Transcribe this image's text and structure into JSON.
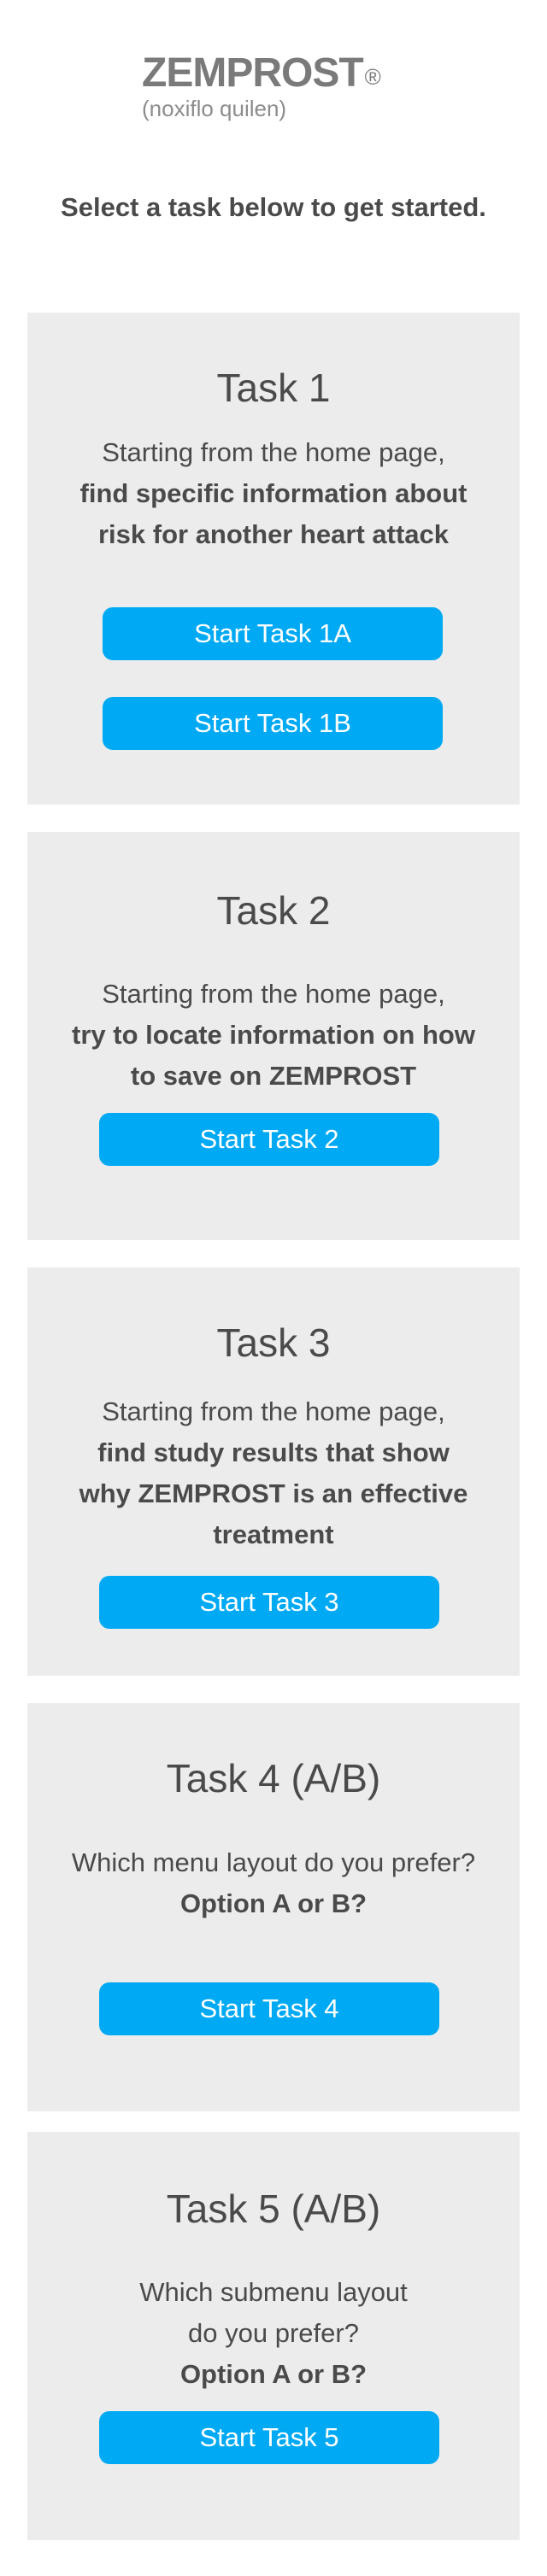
{
  "brand": {
    "name": "ZEMPROST",
    "registered_mark": "®",
    "generic_name": "(noxiflo quilen)"
  },
  "intro_text": "Select a task below to get started.",
  "colors": {
    "button": "#00a9f4",
    "card_bg": "#ececec",
    "text": "#4a4a4a"
  },
  "tasks": [
    {
      "title": "Task 1",
      "lines": [
        "Starting from the home page,"
      ],
      "bold_lines": [
        "find specific information about",
        "risk for another heart attack"
      ],
      "buttons": [
        "Start Task 1A",
        "Start Task 1B"
      ]
    },
    {
      "title": "Task 2",
      "lines": [
        "Starting from the home page,"
      ],
      "bold_lines": [
        "try to locate information on how",
        "to save on ZEMPROST"
      ],
      "buttons": [
        "Start Task 2"
      ]
    },
    {
      "title": "Task 3",
      "lines": [
        "Starting from the home page,"
      ],
      "bold_lines": [
        "find study results that show",
        "why ZEMPROST is an effective",
        "treatment"
      ],
      "buttons": [
        "Start Task 3"
      ]
    },
    {
      "title": "Task 4 (A/B)",
      "lines": [
        "Which menu layout do you prefer?"
      ],
      "bold_lines": [
        "Option A or B?"
      ],
      "buttons": [
        "Start Task 4"
      ]
    },
    {
      "title": "Task 5 (A/B)",
      "lines": [
        "Which submenu layout",
        "do you prefer?"
      ],
      "bold_lines": [
        "Option A or B?"
      ],
      "buttons": [
        "Start Task 5"
      ]
    }
  ]
}
